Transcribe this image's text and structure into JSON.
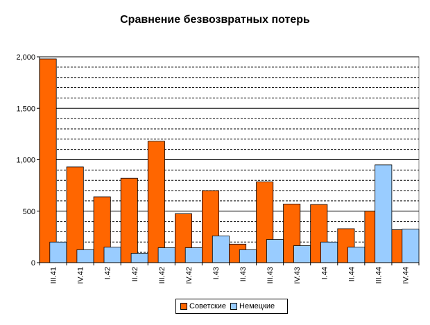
{
  "chart_data": {
    "type": "bar",
    "title": "Сравнение безвозвратных потерь",
    "categories": [
      "III.41",
      "IV.41",
      "I.42",
      "II.42",
      "III.42",
      "IV.42",
      "I.43",
      "II.43",
      "III.43",
      "IV.43",
      "I.44",
      "II.44",
      "III.44",
      "IV.44"
    ],
    "series": [
      {
        "name": "Советские",
        "color": "#ff6600",
        "values": [
          1980,
          930,
          640,
          820,
          1180,
          475,
          700,
          180,
          785,
          570,
          565,
          330,
          500,
          320
        ]
      },
      {
        "name": "Немецкие",
        "color": "#99ccff",
        "values": [
          200,
          125,
          150,
          90,
          145,
          145,
          260,
          125,
          225,
          165,
          200,
          150,
          950,
          325
        ]
      }
    ],
    "ylim": [
      0,
      2000
    ],
    "yticks": [
      "0",
      "500",
      "1,000",
      "1,500",
      "2,000"
    ],
    "ytick_values": [
      0,
      500,
      1000,
      1500,
      2000
    ],
    "minor_grid_step": 100,
    "grid": true,
    "legend_position": "bottom"
  },
  "legend": {
    "items": [
      {
        "label": "Советские",
        "color": "#ff6600"
      },
      {
        "label": "Немецкие",
        "color": "#99ccff"
      }
    ]
  }
}
